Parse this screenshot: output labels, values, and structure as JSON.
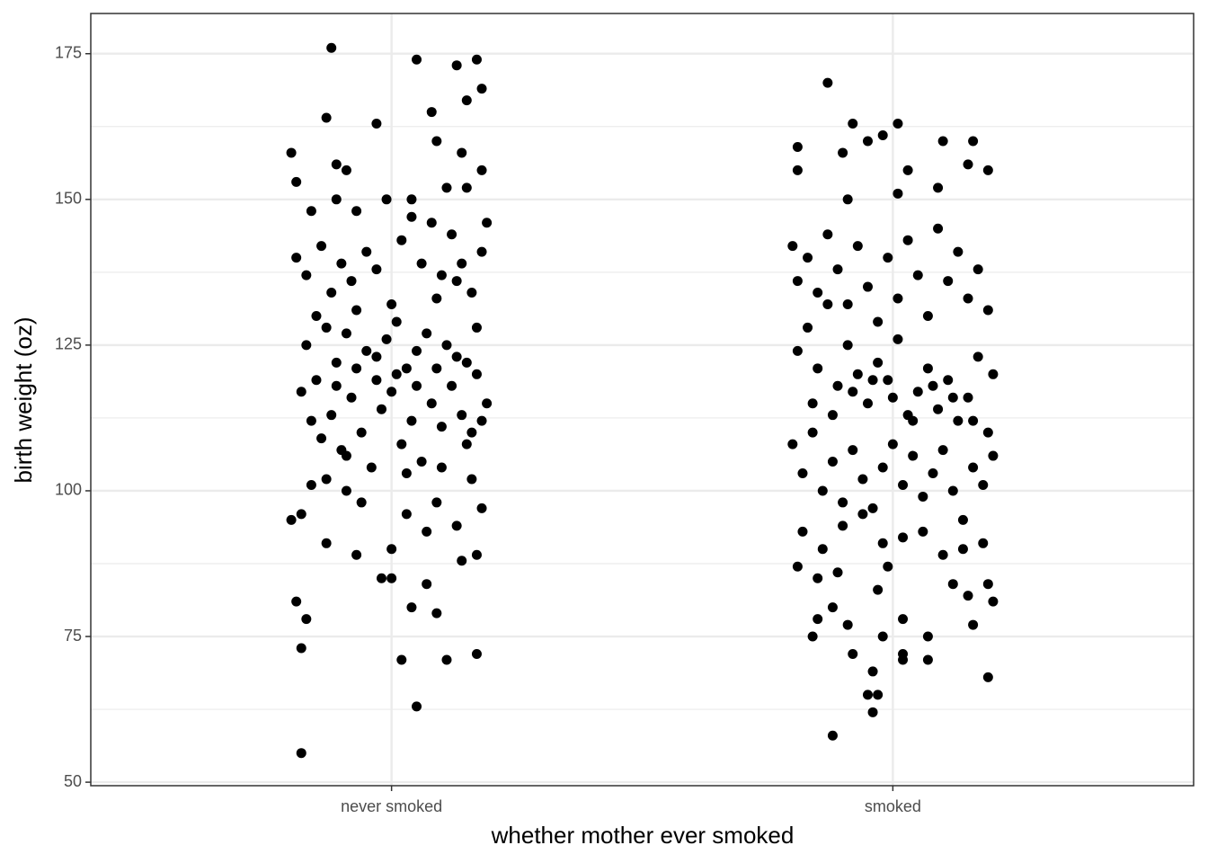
{
  "chart_data": {
    "type": "scatter",
    "x_label": "whether mother ever smoked",
    "y_label": "birth weight (oz)",
    "xlim": [
      0.4,
      2.6
    ],
    "xticks": [
      {
        "value": 1,
        "label": "never smoked"
      },
      {
        "value": 2,
        "label": "smoked"
      }
    ],
    "ylim": [
      49.4,
      181.9
    ],
    "yticks": [
      50,
      75,
      100,
      125,
      150,
      175
    ],
    "y_minor_ticks": [
      62.5,
      87.5,
      112.5,
      137.5,
      162.5
    ],
    "grid": true,
    "color": "#000000",
    "x": [
      0.88,
      0.8,
      0.81,
      0.87,
      0.97,
      1.05,
      1.13,
      1.17,
      1.15,
      1.18,
      1.08,
      1.09,
      1.14,
      1.18,
      0.89,
      0.91,
      0.82,
      1.05,
      1.02,
      1.11,
      1.17,
      0.82,
      0.83,
      0.81,
      1.04,
      1.09,
      1.07,
      0.98,
      1.0,
      1.14,
      1.17,
      0.8,
      0.82,
      0.87,
      0.93,
      1.0,
      1.07,
      1.13,
      1.18,
      0.84,
      0.91,
      0.94,
      1.03,
      1.09,
      1.16,
      0.83,
      0.85,
      0.87,
      0.89,
      0.91,
      0.93,
      0.95,
      0.97,
      0.99,
      1.01,
      1.03,
      1.05,
      1.07,
      1.09,
      1.11,
      1.13,
      1.15,
      1.17,
      1.19,
      0.82,
      0.84,
      0.86,
      0.88,
      0.9,
      0.92,
      0.94,
      0.96,
      0.98,
      1.0,
      1.02,
      1.04,
      1.06,
      1.08,
      1.1,
      1.12,
      1.14,
      1.16,
      1.18,
      0.81,
      0.83,
      0.86,
      0.88,
      0.9,
      0.92,
      0.95,
      0.97,
      1.0,
      1.02,
      1.04,
      1.06,
      1.08,
      1.1,
      1.12,
      1.14,
      1.16,
      1.18,
      1.19,
      0.85,
      0.89,
      0.93,
      0.97,
      1.01,
      1.05,
      1.09,
      1.13,
      1.17,
      0.84,
      0.89,
      0.93,
      0.99,
      1.04,
      1.11,
      1.15,
      0.87,
      0.91,
      1.03,
      1.1,
      1.15,
      1.87,
      1.88,
      1.96,
      1.95,
      1.97,
      1.96,
      2.02,
      2.07,
      2.02,
      2.19,
      1.92,
      1.98,
      2.07,
      1.84,
      1.91,
      2.16,
      1.85,
      2.02,
      1.88,
      2.2,
      2.15,
      1.81,
      1.85,
      1.89,
      1.99,
      2.19,
      2.12,
      1.97,
      1.81,
      1.81,
      1.92,
      2.01,
      1.98,
      1.95,
      1.9,
      2.1,
      2.16,
      2.15,
      2.19,
      2.03,
      2.09,
      2.01,
      1.91,
      1.8,
      1.81,
      1.83,
      1.85,
      1.87,
      1.89,
      1.91,
      1.93,
      1.95,
      1.97,
      1.99,
      2.01,
      2.03,
      2.05,
      2.07,
      2.09,
      2.11,
      2.13,
      2.15,
      2.17,
      2.19,
      1.8,
      1.82,
      1.84,
      1.86,
      1.88,
      1.9,
      1.92,
      1.94,
      1.96,
      1.98,
      2.0,
      2.02,
      2.04,
      2.06,
      2.08,
      2.1,
      2.12,
      2.14,
      2.16,
      2.18,
      2.2,
      1.81,
      1.83,
      1.85,
      1.87,
      1.89,
      1.91,
      1.93,
      1.95,
      1.97,
      1.99,
      2.01,
      2.03,
      2.05,
      2.07,
      2.09,
      2.11,
      2.13,
      2.15,
      2.17,
      2.19,
      1.82,
      1.86,
      1.9,
      1.94,
      1.98,
      2.02,
      2.06,
      2.1,
      2.14,
      2.18,
      1.84,
      1.88,
      1.92,
      1.96,
      2.0,
      2.04,
      2.08,
      2.12,
      2.16,
      2.2
    ],
    "values": [
      176,
      158,
      153,
      164,
      163,
      174,
      173,
      174,
      167,
      169,
      165,
      160,
      158,
      155,
      156,
      155,
      55,
      63,
      71,
      71,
      72,
      73,
      78,
      81,
      80,
      79,
      84,
      85,
      85,
      88,
      89,
      95,
      96,
      91,
      89,
      90,
      93,
      94,
      97,
      101,
      100,
      98,
      96,
      98,
      102,
      125,
      130,
      128,
      122,
      127,
      131,
      124,
      119,
      126,
      129,
      121,
      118,
      127,
      133,
      125,
      136,
      122,
      128,
      115,
      117,
      112,
      109,
      113,
      107,
      116,
      110,
      104,
      114,
      117,
      108,
      112,
      105,
      115,
      111,
      118,
      113,
      110,
      112,
      140,
      137,
      142,
      134,
      139,
      136,
      141,
      138,
      132,
      143,
      147,
      139,
      146,
      137,
      144,
      139,
      134,
      141,
      146,
      119,
      118,
      121,
      123,
      120,
      124,
      121,
      123,
      120,
      148,
      150,
      148,
      150,
      150,
      152,
      152,
      102,
      106,
      103,
      104,
      108,
      170,
      58,
      62,
      65,
      65,
      69,
      71,
      71,
      72,
      68,
      72,
      75,
      75,
      75,
      77,
      77,
      78,
      78,
      80,
      81,
      82,
      87,
      85,
      86,
      87,
      84,
      84,
      83,
      155,
      159,
      163,
      163,
      161,
      160,
      158,
      160,
      160,
      156,
      155,
      155,
      152,
      151,
      150,
      142,
      124,
      128,
      121,
      132,
      118,
      125,
      120,
      115,
      122,
      119,
      126,
      113,
      117,
      121,
      114,
      119,
      112,
      116,
      123,
      110,
      108,
      103,
      110,
      100,
      105,
      98,
      107,
      102,
      97,
      104,
      108,
      101,
      106,
      99,
      103,
      107,
      100,
      95,
      104,
      101,
      106,
      136,
      140,
      134,
      144,
      138,
      132,
      142,
      135,
      129,
      140,
      133,
      143,
      137,
      130,
      145,
      136,
      141,
      133,
      138,
      131,
      93,
      90,
      94,
      96,
      91,
      92,
      93,
      89,
      90,
      91,
      115,
      113,
      117,
      119,
      116,
      112,
      118,
      116,
      112,
      120
    ]
  }
}
